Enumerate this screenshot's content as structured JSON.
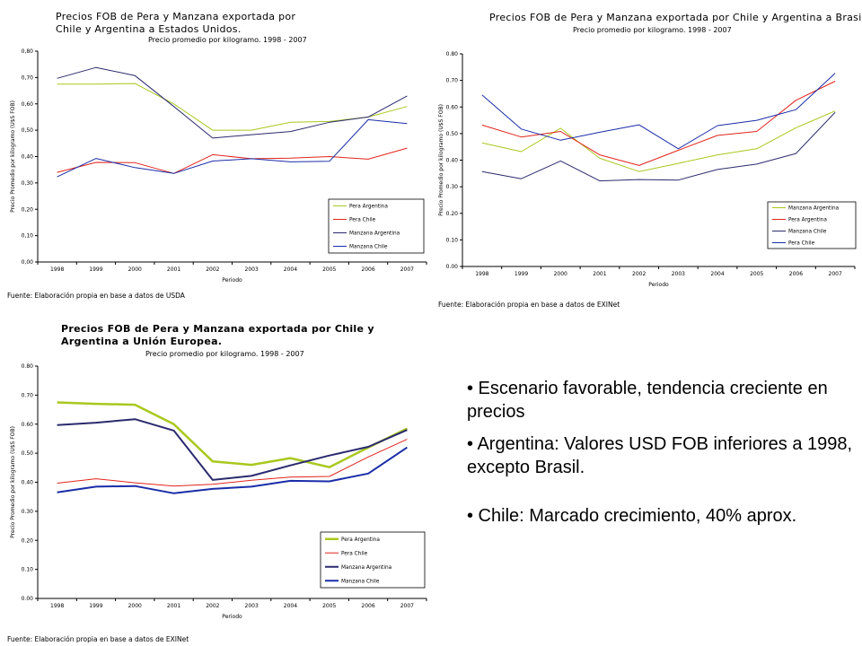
{
  "colors": {
    "lime": "#a8c81e",
    "red": "#e0241c",
    "navy": "#2a2a6e",
    "blue": "#1a2da8"
  },
  "chart_data": [
    {
      "type": "line",
      "title": "Precios FOB de Pera y Manzana exportada por Chile y Argentina a Estados Unidos.",
      "subtitle": "Precio promedio por kilogramo. 1998 - 2007",
      "xlabel": "Periodo",
      "ylabel": "Precio Promedio por kilogramo (U$S FOB)",
      "source": "Fuente: Elaboración propia en base a datos de USDA",
      "categories": [
        "1998",
        "1999",
        "2000",
        "2001",
        "2002",
        "2003",
        "2004",
        "2005",
        "2006",
        "2007"
      ],
      "yticks": [
        "0,00",
        "0,10",
        "0,20",
        "0,30",
        "0,40",
        "0,50",
        "0,60",
        "0,70",
        "0,80"
      ],
      "ylim": [
        0,
        0.8
      ],
      "legend": "bottom-right",
      "series": [
        {
          "name": "Pera Argentina",
          "color": "#a8c81e",
          "width": 1,
          "values": [
            0.675,
            0.675,
            0.677,
            0.6,
            0.5,
            0.5,
            0.53,
            0.533,
            0.55,
            0.59
          ]
        },
        {
          "name": "Pera Chile",
          "color": "#e0241c",
          "width": 1,
          "values": [
            0.34,
            0.378,
            0.377,
            0.336,
            0.407,
            0.392,
            0.394,
            0.4,
            0.39,
            0.432
          ]
        },
        {
          "name": "Manzana Argentina",
          "color": "#2a2a6e",
          "width": 1,
          "values": [
            0.697,
            0.738,
            0.707,
            0.59,
            0.47,
            0.483,
            0.495,
            0.53,
            0.55,
            0.63
          ]
        },
        {
          "name": "Manzana Chile",
          "color": "#1a2da8",
          "width": 1,
          "values": [
            0.323,
            0.393,
            0.358,
            0.336,
            0.383,
            0.392,
            0.38,
            0.382,
            0.54,
            0.525
          ]
        }
      ]
    },
    {
      "type": "line",
      "title": "Precios FOB de Pera y Manzana exportada por Chile y Argentina a Brasil.",
      "subtitle": "Precio promedio por kilogramo. 1998 - 2007",
      "xlabel": "Periodo",
      "ylabel": "Precio Promedio por kilogramo (U$S FOB)",
      "source": "Fuente: Elaboración propia en base a datos de EXINet",
      "categories": [
        "1998",
        "1999",
        "2000",
        "2001",
        "2002",
        "2003",
        "2004",
        "2005",
        "2006",
        "2007"
      ],
      "yticks": [
        "0.00",
        "0.10",
        "0.20",
        "0.30",
        "0.40",
        "0.50",
        "0.60",
        "0.70",
        "0.80"
      ],
      "ylim": [
        0,
        0.8
      ],
      "legend": "bottom-right",
      "series": [
        {
          "name": "Manzana Argentina",
          "color": "#a8c81e",
          "width": 1,
          "values": [
            0.465,
            0.432,
            0.52,
            0.407,
            0.357,
            0.388,
            0.42,
            0.443,
            0.522,
            0.585
          ]
        },
        {
          "name": "Pera Argentina",
          "color": "#e0241c",
          "width": 1,
          "values": [
            0.532,
            0.487,
            0.508,
            0.42,
            0.38,
            0.437,
            0.493,
            0.508,
            0.625,
            0.697
          ]
        },
        {
          "name": "Manzana Chile",
          "color": "#2a2a6e",
          "width": 1,
          "values": [
            0.357,
            0.33,
            0.397,
            0.322,
            0.327,
            0.325,
            0.365,
            0.385,
            0.425,
            0.58
          ]
        },
        {
          "name": "Pera Chile",
          "color": "#1a2da8",
          "width": 1,
          "values": [
            0.645,
            0.517,
            0.475,
            0.505,
            0.533,
            0.443,
            0.53,
            0.55,
            0.59,
            0.727
          ]
        }
      ]
    },
    {
      "type": "line",
      "title": "Precios FOB de Pera y Manzana exportada por Chile y Argentina a Unión Europea.",
      "subtitle": "Precio promedio por kilogramo. 1998 - 2007",
      "xlabel": "Periodo",
      "ylabel": "Precio Promedio por kilogramo (U$S FOB)",
      "source": "Fuente: Elaboración propia en base a datos de EXINet",
      "categories": [
        "1998",
        "1999",
        "2000",
        "2001",
        "2002",
        "2003",
        "2004",
        "2005",
        "2006",
        "2007"
      ],
      "yticks": [
        "0.00",
        "0.10",
        "0.20",
        "0.30",
        "0.40",
        "0.50",
        "0.60",
        "0.70",
        "0.80"
      ],
      "ylim": [
        0,
        0.8
      ],
      "legend": "bottom-right",
      "series": [
        {
          "name": "Pera Argentina",
          "color": "#a8c81e",
          "width": 2.5,
          "values": [
            0.675,
            0.67,
            0.667,
            0.6,
            0.472,
            0.46,
            0.483,
            0.452,
            0.52,
            0.585
          ]
        },
        {
          "name": "Pera Chile",
          "color": "#e0241c",
          "width": 1,
          "values": [
            0.397,
            0.412,
            0.398,
            0.387,
            0.393,
            0.407,
            0.418,
            0.42,
            0.487,
            0.548
          ]
        },
        {
          "name": "Manzana Argentina",
          "color": "#2a2a6e",
          "width": 2,
          "values": [
            0.597,
            0.605,
            0.617,
            0.578,
            0.408,
            0.422,
            0.458,
            0.492,
            0.522,
            0.58
          ]
        },
        {
          "name": "Manzana Chile",
          "color": "#1a2da8",
          "width": 2,
          "values": [
            0.365,
            0.385,
            0.387,
            0.362,
            0.377,
            0.385,
            0.405,
            0.403,
            0.43,
            0.52
          ]
        }
      ]
    }
  ],
  "bullets": [
    "• Escenario favorable, tendencia creciente en precios",
    "• Argentina: Valores USD FOB inferiores a 1998, excepto Brasil.",
    "• Chile: Marcado crecimiento, 40% aprox."
  ]
}
